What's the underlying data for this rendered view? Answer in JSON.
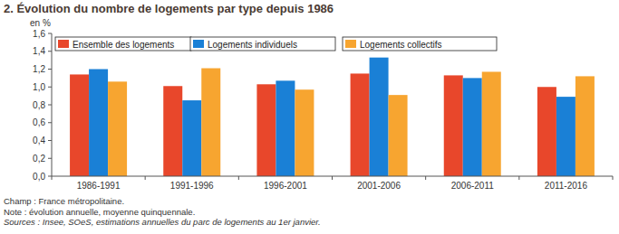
{
  "chart_data": {
    "type": "bar",
    "title": "2. Évolution du nombre de logements par type depuis 1986",
    "y_label": "en %",
    "categories": [
      "1986-1991",
      "1991-1996",
      "1996-2001",
      "2001-2006",
      "2006-2011",
      "2011-2016"
    ],
    "series": [
      {
        "name": "Ensemble des logements",
        "color": "#e8472b",
        "values": [
          1.14,
          1.01,
          1.03,
          1.15,
          1.13,
          1.0
        ]
      },
      {
        "name": "Logements individuels",
        "color": "#1a80d6",
        "values": [
          1.2,
          0.85,
          1.07,
          1.33,
          1.1,
          0.89
        ]
      },
      {
        "name": "Logements collectifs",
        "color": "#f7a530",
        "values": [
          1.06,
          1.21,
          0.97,
          0.91,
          1.17,
          1.12
        ]
      }
    ],
    "ylim": [
      0,
      1.6
    ],
    "yticks": [
      {
        "value": 0,
        "label": "0,0"
      },
      {
        "value": 0.2,
        "label": "0,2"
      },
      {
        "value": 0.4,
        "label": "0,4"
      },
      {
        "value": 0.6,
        "label": "0,6"
      },
      {
        "value": 0.8,
        "label": "0,8"
      },
      {
        "value": 1.0,
        "label": "1,0"
      },
      {
        "value": 1.2,
        "label": "1,2"
      },
      {
        "value": 1.4,
        "label": "1,4"
      },
      {
        "value": 1.6,
        "label": "1,6"
      }
    ],
    "grid": false,
    "legend": "top",
    "notes": [
      "Champ : France métropolitaine.",
      "Note : évolution annuelle, moyenne quinquennale.",
      "Sources : Insee, SOeS, estimations annuelles du parc de logements au 1er janvier."
    ]
  }
}
